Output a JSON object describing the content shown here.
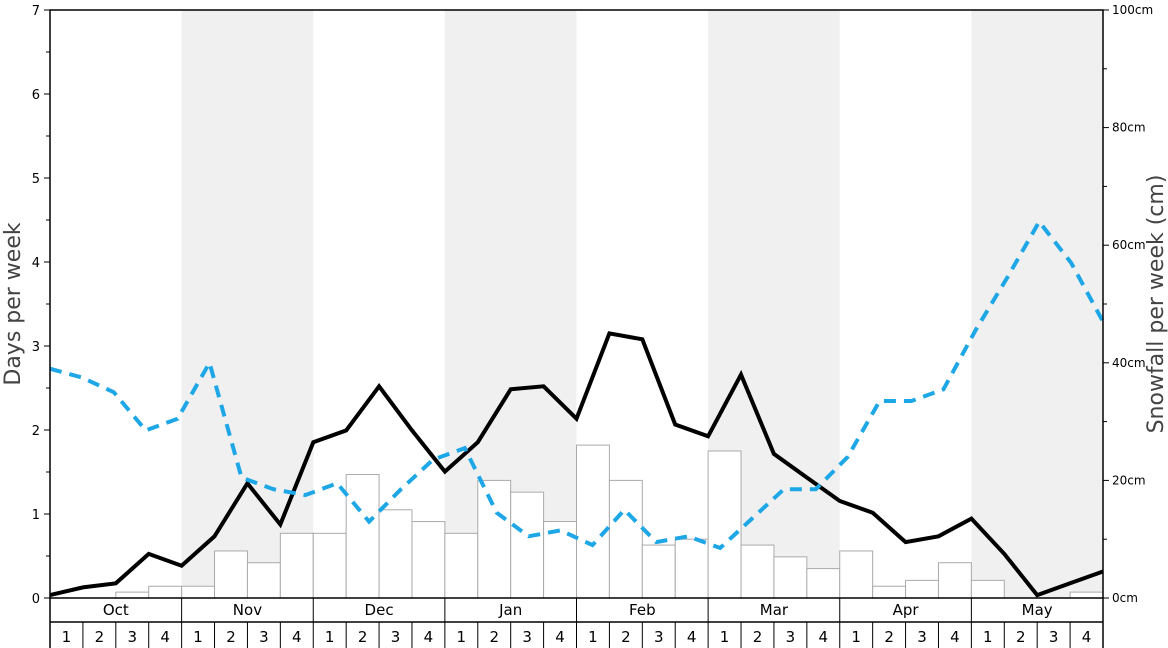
{
  "chart_data": {
    "type": "bar",
    "left_axis": {
      "label": "Days per week",
      "ylim": [
        0,
        7
      ],
      "ticks": [
        "0",
        "1",
        "2",
        "3",
        "4",
        "5",
        "6",
        "7"
      ]
    },
    "right_axis": {
      "label": "Snowfall per week (cm)",
      "ylim": [
        0,
        100
      ],
      "ticks": [
        "0cm",
        "20cm",
        "40cm",
        "60cm",
        "80cm",
        "100cm"
      ]
    },
    "months": [
      "Oct",
      "Nov",
      "Dec",
      "Jan",
      "Feb",
      "Mar",
      "Apr",
      "May"
    ],
    "week_labels": [
      "1",
      "2",
      "3",
      "4"
    ],
    "grid": false,
    "colors": {
      "bars_fill": "#ffffff",
      "bars_stroke": "#aaaaaa",
      "solid_line": "#000000",
      "dashed_line": "#1ea7e6",
      "shade": "#f0f0f0"
    },
    "series": [
      {
        "axis": "right",
        "type": "bar",
        "values": [
          0,
          0,
          1,
          2,
          2,
          8,
          6,
          11,
          11,
          21,
          15,
          13,
          11,
          20,
          18,
          13,
          26,
          20,
          9,
          10,
          25,
          9,
          7,
          5,
          8,
          2,
          3,
          6,
          3,
          0,
          0,
          1
        ]
      },
      {
        "axis": "right",
        "type": "line",
        "style": "solid",
        "values": [
          0.5,
          1.8,
          2.5,
          7.5,
          5.5,
          10.5,
          19.5,
          12.5,
          26.5,
          28.5,
          36,
          28.5,
          21.5,
          26.5,
          35.5,
          36,
          30.5,
          45,
          44,
          29.5,
          27.5,
          38,
          24.5,
          20.5,
          16.5,
          14.5,
          9.5,
          10.5,
          13.5,
          7.5,
          0.5,
          2.5,
          4.5
        ]
      },
      {
        "axis": "right",
        "type": "line",
        "style": "dashed",
        "values": [
          39,
          37.5,
          35,
          28.5,
          30.5,
          40,
          20.5,
          18.5,
          17.5,
          19.5,
          13,
          18.5,
          23.5,
          25.5,
          14.5,
          10.5,
          11.5,
          9,
          15,
          9.5,
          10.5,
          8.5,
          13.5,
          18.5,
          18.5,
          24,
          33.5,
          33.5,
          35.5,
          45.5,
          54.5,
          64,
          57,
          47
        ]
      }
    ]
  }
}
